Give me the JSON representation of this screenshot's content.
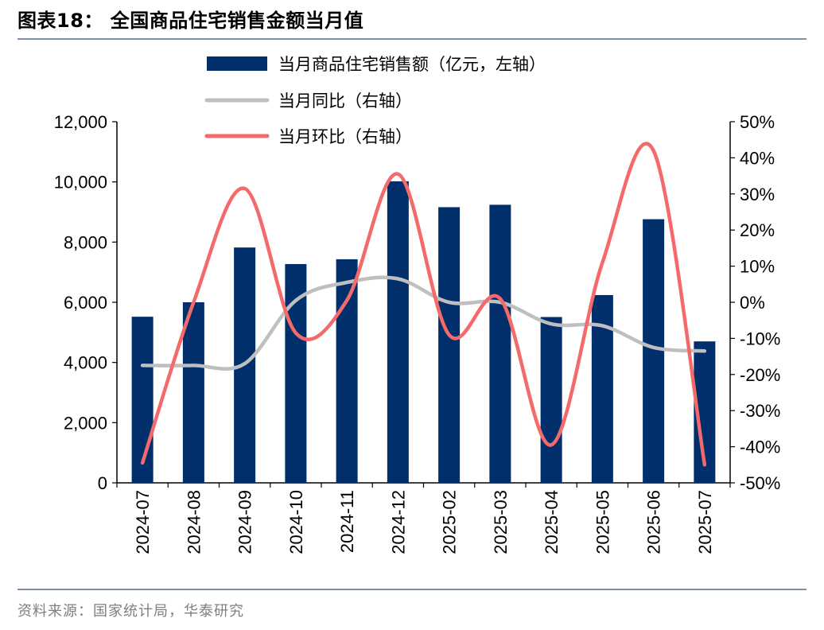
{
  "header": {
    "title": "图表18：  全国商品住宅销售金额当月值"
  },
  "footer": {
    "source": "资料来源：国家统计局，华泰研究"
  },
  "chart_data": {
    "type": "bar",
    "categories": [
      "2024-07",
      "2024-08",
      "2024-09",
      "2024-10",
      "2024-11",
      "2024-12",
      "2025-02",
      "2025-03",
      "2025-04",
      "2025-05",
      "2025-06",
      "2025-07"
    ],
    "series": [
      {
        "name": "当月商品住宅销售额（亿元，左轴）",
        "type": "bar",
        "axis": "left",
        "color": "#002f6c",
        "values": [
          5520,
          6000,
          7820,
          7270,
          7430,
          10020,
          9160,
          9240,
          5510,
          6240,
          8760,
          4700
        ]
      },
      {
        "name": "当月同比（右轴）",
        "type": "line",
        "axis": "right",
        "color": "#bfbfbf",
        "values": [
          -17.5,
          -17.5,
          -17,
          0.5,
          5.5,
          6.5,
          0,
          0,
          -6,
          -6.5,
          -12.5,
          -13.5
        ]
      },
      {
        "name": "当月环比（右轴）",
        "type": "line",
        "axis": "right",
        "color": "#f46a6a",
        "values": [
          -44.5,
          0,
          31.5,
          -8.5,
          0.5,
          35.5,
          -9,
          1,
          -39.5,
          11,
          42,
          -45
        ]
      }
    ],
    "y_left": {
      "min": 0,
      "max": 12000,
      "ticks": [
        "0",
        "2,000",
        "4,000",
        "6,000",
        "8,000",
        "10,000",
        "12,000"
      ]
    },
    "y_right": {
      "min": -50,
      "max": 50,
      "ticks": [
        "-50%",
        "-40%",
        "-30%",
        "-20%",
        "-10%",
        "0%",
        "10%",
        "20%",
        "30%",
        "40%",
        "50%"
      ]
    },
    "grid": false,
    "legend_position": "top-center"
  }
}
